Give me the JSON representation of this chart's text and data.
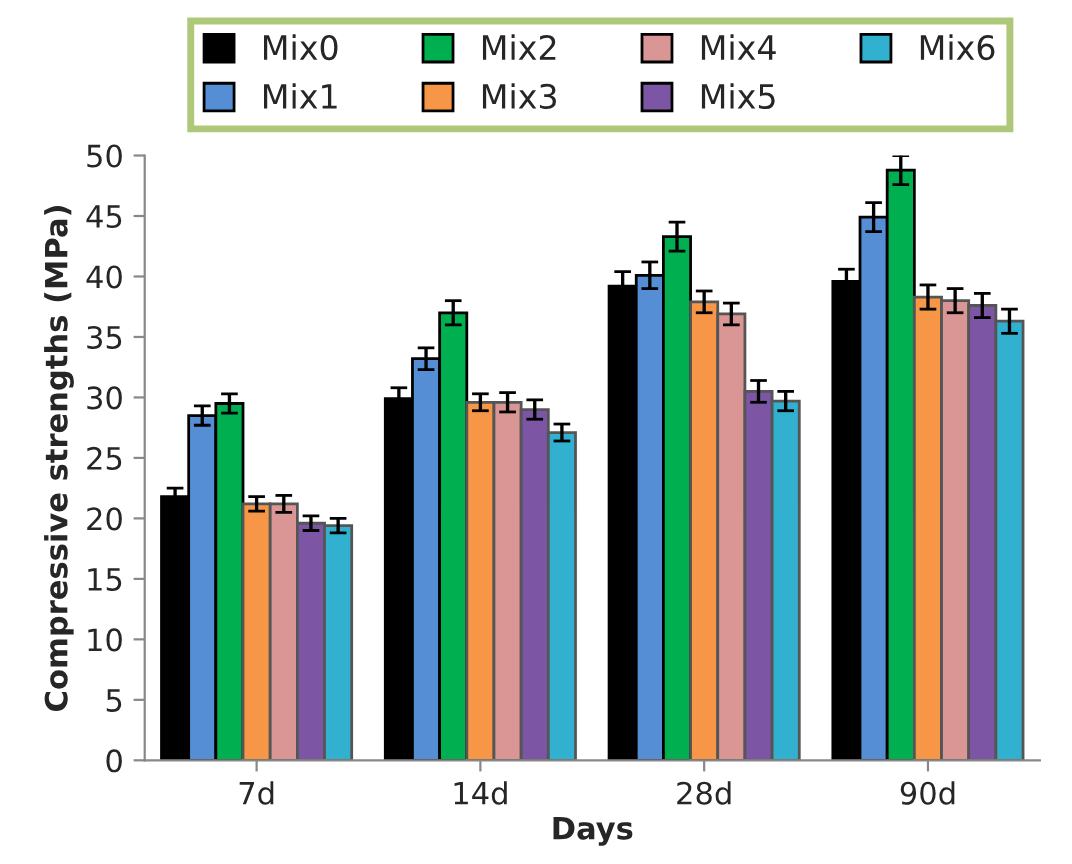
{
  "chart_data": {
    "type": "bar",
    "xlabel": "Days",
    "ylabel": "Compressive strengths (MPa)",
    "categories": [
      "7d",
      "14d",
      "28d",
      "90d"
    ],
    "series": [
      {
        "name": "Mix0",
        "color": "#000000",
        "values": [
          21.8,
          29.9,
          39.2,
          39.6
        ],
        "errors": [
          0.7,
          0.9,
          1.2,
          1.0
        ]
      },
      {
        "name": "Mix1",
        "color": "#558ed5",
        "values": [
          28.5,
          33.2,
          40.1,
          44.9
        ],
        "errors": [
          0.8,
          0.9,
          1.1,
          1.2
        ]
      },
      {
        "name": "Mix2",
        "color": "#00b050",
        "values": [
          29.5,
          37.0,
          43.3,
          48.8
        ],
        "errors": [
          0.8,
          1.0,
          1.2,
          1.2
        ]
      },
      {
        "name": "Mix3",
        "color": "#f79646",
        "values": [
          21.2,
          29.6,
          37.9,
          38.3
        ],
        "errors": [
          0.6,
          0.7,
          0.9,
          1.0
        ]
      },
      {
        "name": "Mix4",
        "color": "#d99694",
        "values": [
          21.2,
          29.6,
          36.9,
          38.0
        ],
        "errors": [
          0.7,
          0.8,
          0.9,
          1.0
        ]
      },
      {
        "name": "Mix5",
        "color": "#7c56a4",
        "values": [
          19.6,
          29.0,
          30.5,
          37.6
        ],
        "errors": [
          0.6,
          0.8,
          0.9,
          1.0
        ]
      },
      {
        "name": "Mix6",
        "color": "#31b0d0",
        "values": [
          19.4,
          27.1,
          29.7,
          36.3
        ],
        "errors": [
          0.6,
          0.7,
          0.8,
          1.0
        ]
      }
    ],
    "ylim": [
      0,
      50
    ],
    "yticks": [
      0,
      5,
      10,
      15,
      20,
      25,
      30,
      35,
      40,
      45,
      50
    ],
    "grid": false,
    "legend": "top"
  }
}
